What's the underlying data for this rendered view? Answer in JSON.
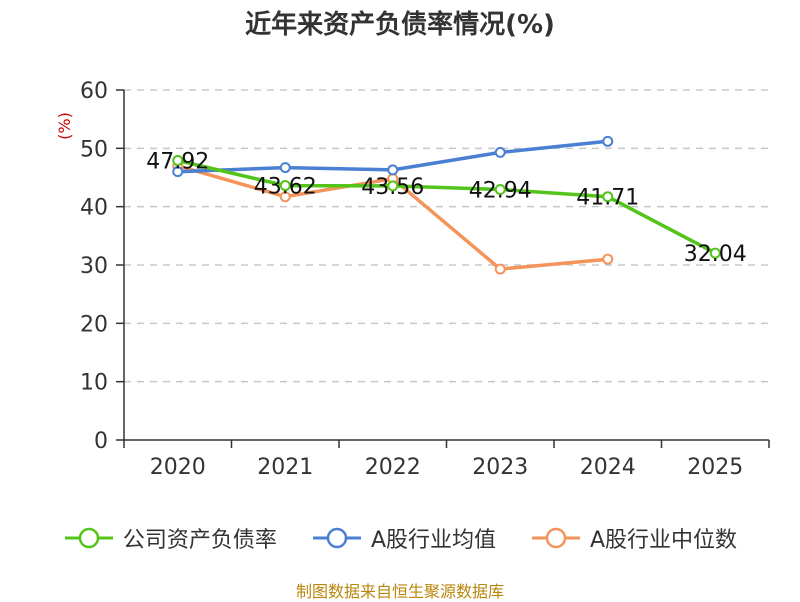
{
  "title": "近年来资产负债率情况(%)",
  "source": "制图数据来自恒生聚源数据库",
  "chart_data": {
    "type": "line",
    "title": "近年来资产负债率情况(%)",
    "ylabel": "(%)",
    "xlabel": "",
    "categories": [
      "2020",
      "2021",
      "2022",
      "2023",
      "2024",
      "2025"
    ],
    "ylim": [
      0,
      60
    ],
    "yticks": [
      0,
      10,
      20,
      30,
      40,
      50,
      60
    ],
    "grid": true,
    "legend_position": "bottom",
    "series": [
      {
        "name": "公司资产负债率",
        "color": "#52c41a",
        "values": [
          47.92,
          43.62,
          43.56,
          42.94,
          41.71,
          32.04
        ],
        "data_labels": [
          "47.92",
          "43.62",
          "43.56",
          "42.94",
          "41.71",
          "32.04"
        ]
      },
      {
        "name": "A股行业均值",
        "color": "#4a7fd4",
        "values": [
          46.0,
          46.7,
          46.3,
          49.3,
          51.2,
          null
        ]
      },
      {
        "name": "A股行业中位数",
        "color": "#f4935a",
        "values": [
          47.0,
          41.7,
          44.8,
          29.3,
          31.0,
          null
        ]
      }
    ]
  },
  "colors": {
    "title": "#333333",
    "axis": "#333333",
    "grid": "#c8c8c8",
    "ylabel": "#cc0000",
    "source": "#b8860b"
  }
}
